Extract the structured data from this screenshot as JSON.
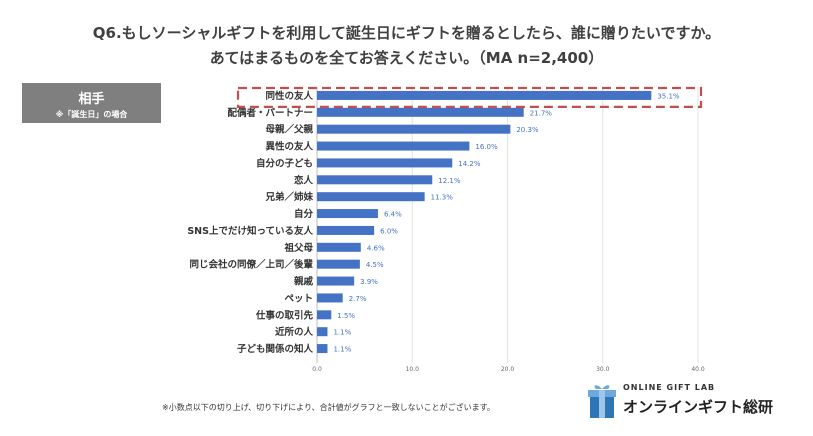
{
  "header": {
    "line1": "Q6.もしソーシャルギフトを利用して誕生日にギフトを贈るとしたら、誰に贈りたいですか。",
    "line2": "あてはまるものを全てお答えください。（MA n=2,400）"
  },
  "tag": {
    "title": "相手",
    "subtitle": "※「誕生日」の場合"
  },
  "chart_data": {
    "type": "bar",
    "orientation": "horizontal",
    "title": "",
    "categories": [
      "同性の友人",
      "配偶者・パートナー",
      "母親／父親",
      "異性の友人",
      "自分の子ども",
      "恋人",
      "兄弟／姉妹",
      "自分",
      "SNS上でだけ知っている友人",
      "祖父母",
      "同じ会社の同僚／上司／後輩",
      "親戚",
      "ペット",
      "仕事の取引先",
      "近所の人",
      "子ども関係の知人"
    ],
    "values": [
      35.1,
      21.7,
      20.3,
      16.0,
      14.2,
      12.1,
      11.3,
      6.4,
      6.0,
      4.6,
      4.5,
      3.9,
      2.7,
      1.5,
      1.1,
      1.1
    ],
    "labels": [
      "35.1%",
      "21.7%",
      "20.3%",
      "16.0%",
      "14.2%",
      "12.1%",
      "11.3%",
      "6.4%",
      "6.0%",
      "4.6%",
      "4.5%",
      "3.9%",
      "2.7%",
      "1.5%",
      "1.1%",
      "1.1%"
    ],
    "xticks": [
      0,
      10,
      20,
      30,
      40
    ],
    "xtick_labels": [
      "0.0",
      "10.0",
      "20.0",
      "30.0",
      "40.0"
    ],
    "xlim": [
      0,
      40
    ],
    "highlight_index": 0,
    "bar_color": "#4472c4",
    "highlight_color": "#c0504d"
  },
  "footnote": "※小数点以下の切り上げ、切り下げにより、合計値がグラフと一致しないことがございます。",
  "logo": {
    "small_text": "ONLINE GIFT LAB",
    "big_text": "オンラインギフト総研"
  }
}
